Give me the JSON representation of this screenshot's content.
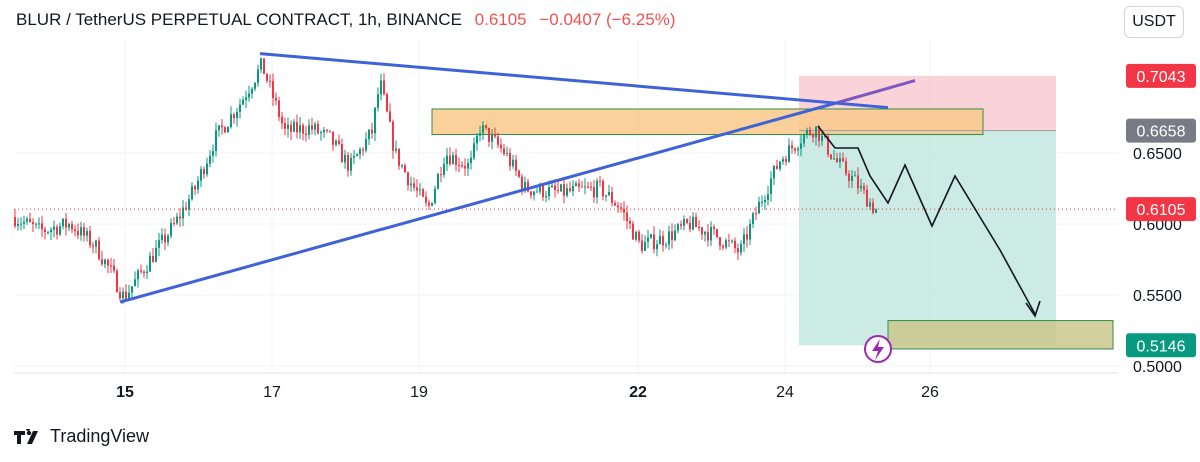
{
  "header": {
    "symbol": "BLUR / TetherUS PERPETUAL CONTRACT, 1h, BINANCE",
    "price": "0.6105",
    "change": "−0.0407 (−6.25%)"
  },
  "currency_button": "USDT",
  "brand": "TradingView",
  "chart_data": {
    "type": "line",
    "x_ticks": [
      {
        "label": "15",
        "bold": true
      },
      {
        "label": "17",
        "bold": false
      },
      {
        "label": "19",
        "bold": false
      },
      {
        "label": "22",
        "bold": true
      },
      {
        "label": "24",
        "bold": false
      },
      {
        "label": "26",
        "bold": false
      }
    ],
    "ylim": [
      0.497,
      0.7225
    ],
    "y_ticks": [
      "0.6500",
      "0.6000",
      "0.5500",
      "0.5000"
    ],
    "price_labels": [
      {
        "name": "stop-loss-label",
        "value": "0.7043",
        "bg": "#f23645",
        "fg": "#ffffff"
      },
      {
        "name": "entry-label",
        "value": "0.6658",
        "bg": "#787b86",
        "fg": "#ffffff"
      },
      {
        "name": "last-price-label",
        "value": "0.6105",
        "bg": "#f23645",
        "fg": "#ffffff"
      },
      {
        "name": "target-label",
        "value": "0.5146",
        "bg": "#089981",
        "fg": "#ffffff"
      }
    ],
    "series": [
      {
        "type": "candles_hourly",
        "x": [
          "15th",
          "16th",
          "17th",
          "18th",
          "19th",
          "20th",
          "21st",
          "22nd",
          "23rd",
          "24th",
          "25th"
        ],
        "close": [
          0.552,
          0.615,
          0.7,
          0.662,
          0.615,
          0.66,
          0.623,
          0.59,
          0.595,
          0.653,
          0.6105
        ]
      }
    ],
    "trendlines": [
      {
        "name": "upper-trendline",
        "from": [
          0.72
        ],
        "to": [
          0.682
        ],
        "color": "#3f63d6"
      },
      {
        "name": "lower-trendline",
        "from": [
          0.545
        ],
        "to": [
          0.695
        ],
        "color": "#3f63d6"
      }
    ],
    "zones": [
      {
        "name": "resistance-zone",
        "low": 0.663,
        "high": 0.681,
        "color": "#f9c98a"
      },
      {
        "name": "target-zone",
        "low": 0.512,
        "high": 0.532,
        "color": "#c9c78d"
      },
      {
        "name": "stop-zone",
        "low": 0.6658,
        "high": 0.7043,
        "color": "#f9c8cf"
      },
      {
        "name": "profit-zone",
        "low": 0.5146,
        "high": 0.6658,
        "color": "#bfe6dd"
      }
    ],
    "grid": true,
    "colors": {
      "up": "#089981",
      "down": "#f23645",
      "trend": "#3f63d6",
      "purple": "#7e57c2"
    }
  }
}
